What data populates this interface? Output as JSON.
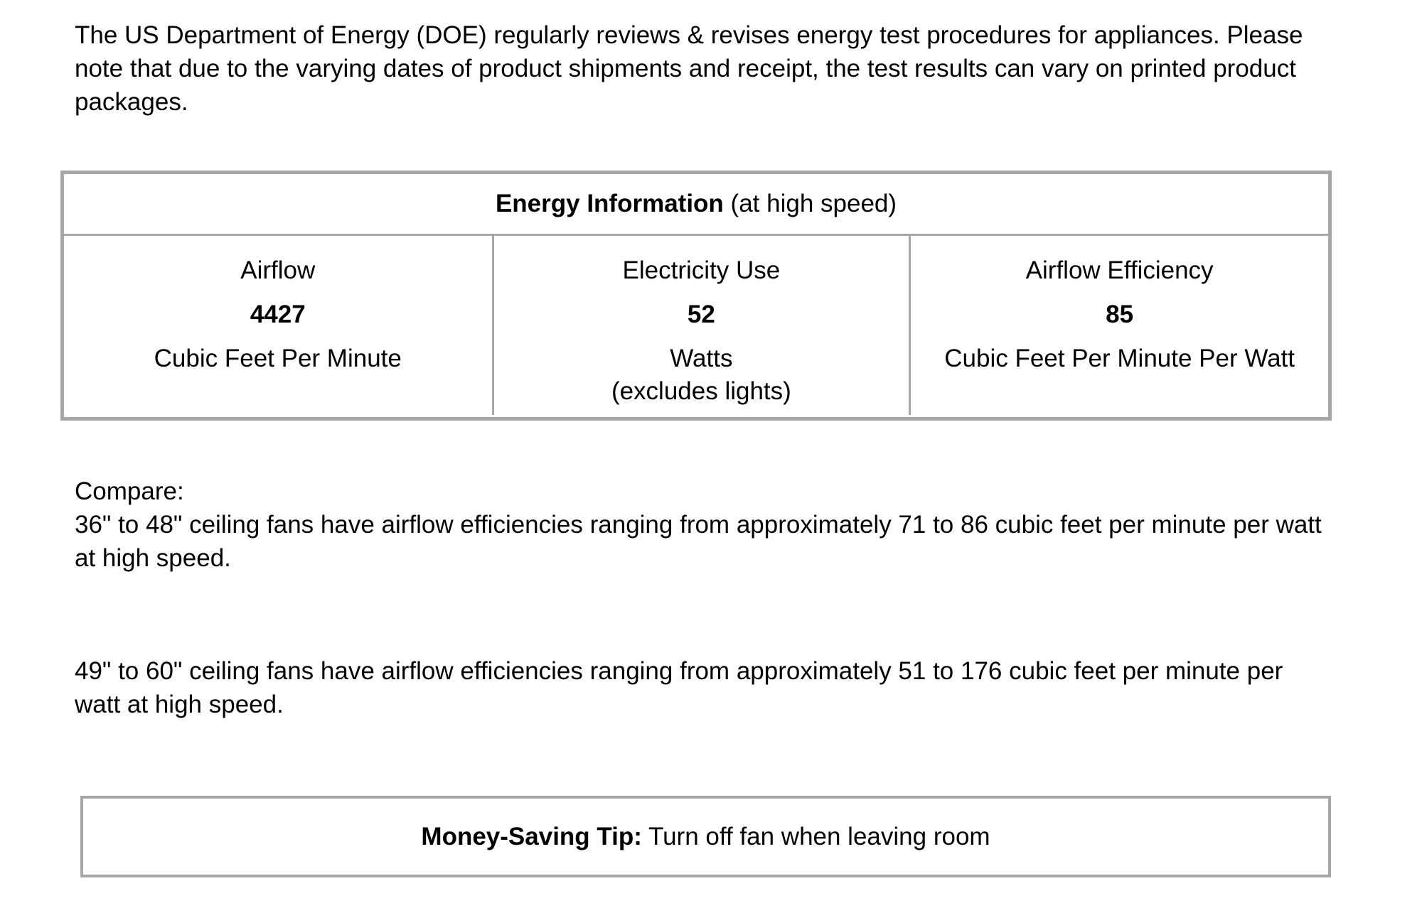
{
  "intro": {
    "text": "The US Department of Energy (DOE) regularly reviews & revises energy test procedures for appliances. Please note that due to the varying dates of product shipments and receipt, the test results can vary on printed product packages."
  },
  "energy_table": {
    "title_bold": "Energy Information",
    "title_suffix": " (at high speed)",
    "columns": [
      {
        "label": "Airflow",
        "value": "4427",
        "unit": "Cubic Feet Per Minute"
      },
      {
        "label": "Electricity Use",
        "value": "52",
        "unit": "Watts",
        "unit_note": "(excludes lights)"
      },
      {
        "label": "Airflow Efficiency",
        "value": "85",
        "unit": "Cubic Feet Per Minute Per Watt"
      }
    ]
  },
  "compare": {
    "heading": "Compare:",
    "paragraph1": "36\" to 48\" ceiling fans have airflow efficiencies ranging from approximately 71 to 86 cubic feet per minute per watt at high speed.",
    "paragraph2": "49\" to 60\" ceiling fans have airflow efficiencies ranging from approximately 51 to 176 cubic feet per minute per watt at high speed."
  },
  "tip": {
    "label_bold": "Money-Saving Tip:",
    "text": " Turn off fan when leaving room"
  },
  "colors": {
    "border_gray": "#a6a6a6",
    "text": "#000000",
    "background": "#ffffff"
  }
}
